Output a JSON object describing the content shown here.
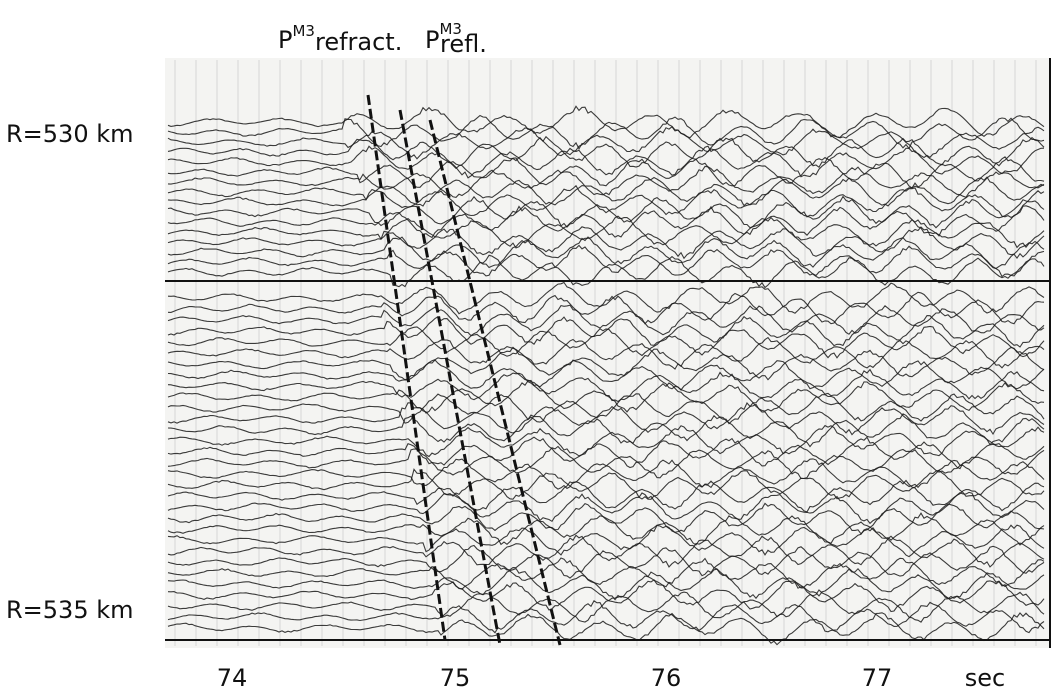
{
  "phase_labels": [
    {
      "base": "P",
      "superscript": "M3",
      "suffix": "refract."
    },
    {
      "base": "P",
      "superscript": "M3",
      "suffix": "refl."
    }
  ],
  "distance_labels": [
    "R=530 km",
    "R=535 km"
  ],
  "time_axis": {
    "ticks": [
      "74",
      "75",
      "76",
      "77"
    ],
    "unit": "sec"
  }
}
